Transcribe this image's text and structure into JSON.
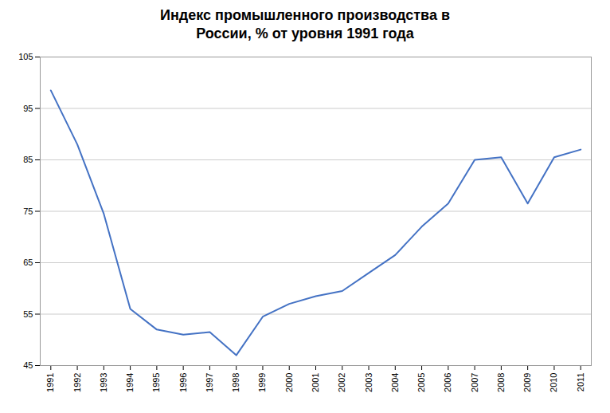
{
  "chart_data": {
    "type": "line",
    "title": "Индекс промышленного производства в\nРоссии, % от уровня 1991 года",
    "x": [
      1991,
      1992,
      1993,
      1994,
      1995,
      1996,
      1997,
      1998,
      1999,
      2000,
      2001,
      2002,
      2003,
      2004,
      2005,
      2006,
      2007,
      2008,
      2009,
      2010,
      2011
    ],
    "values": [
      98.5,
      88.0,
      74.5,
      56.0,
      52.0,
      51.0,
      51.5,
      47.0,
      54.5,
      57.0,
      58.5,
      59.5,
      63.0,
      66.5,
      72.0,
      76.5,
      85.0,
      85.5,
      76.5,
      85.5,
      87.0
    ],
    "color": "#4472c4",
    "xlim": [
      1990.6,
      2011.4
    ],
    "xticks": [
      1991,
      1992,
      1993,
      1994,
      1995,
      1996,
      1997,
      1998,
      1999,
      2000,
      2001,
      2002,
      2003,
      2004,
      2005,
      2006,
      2007,
      2008,
      2009,
      2010,
      2011
    ],
    "ylim": [
      45,
      105
    ],
    "yticks": [
      45,
      55,
      65,
      75,
      85,
      95,
      105
    ],
    "grid": "y"
  }
}
